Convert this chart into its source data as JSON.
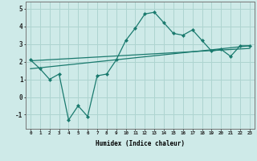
{
  "x": [
    0,
    1,
    2,
    3,
    4,
    5,
    6,
    7,
    8,
    9,
    10,
    11,
    12,
    13,
    14,
    15,
    16,
    17,
    18,
    19,
    20,
    21,
    22,
    23
  ],
  "y_main": [
    2.1,
    1.6,
    1.0,
    1.3,
    -1.3,
    -0.5,
    -1.1,
    1.2,
    1.3,
    2.1,
    3.2,
    3.9,
    4.7,
    4.8,
    4.2,
    3.6,
    3.5,
    3.8,
    3.2,
    2.6,
    2.7,
    2.3,
    2.9,
    2.9
  ],
  "trend1_x": [
    0,
    23
  ],
  "trend1_y": [
    2.05,
    2.75
  ],
  "trend2_x": [
    0,
    23
  ],
  "trend2_y": [
    1.6,
    2.9
  ],
  "line_color": "#1a7a6e",
  "bg_color": "#ceeae8",
  "grid_color": "#aed4d0",
  "xlabel": "Humidex (Indice chaleur)",
  "ylim": [
    -1.8,
    5.4
  ],
  "xlim": [
    -0.5,
    23.5
  ],
  "yticks": [
    -1,
    0,
    1,
    2,
    3,
    4,
    5
  ],
  "xticks": [
    0,
    1,
    2,
    3,
    4,
    5,
    6,
    7,
    8,
    9,
    10,
    11,
    12,
    13,
    14,
    15,
    16,
    17,
    18,
    19,
    20,
    21,
    22,
    23
  ]
}
